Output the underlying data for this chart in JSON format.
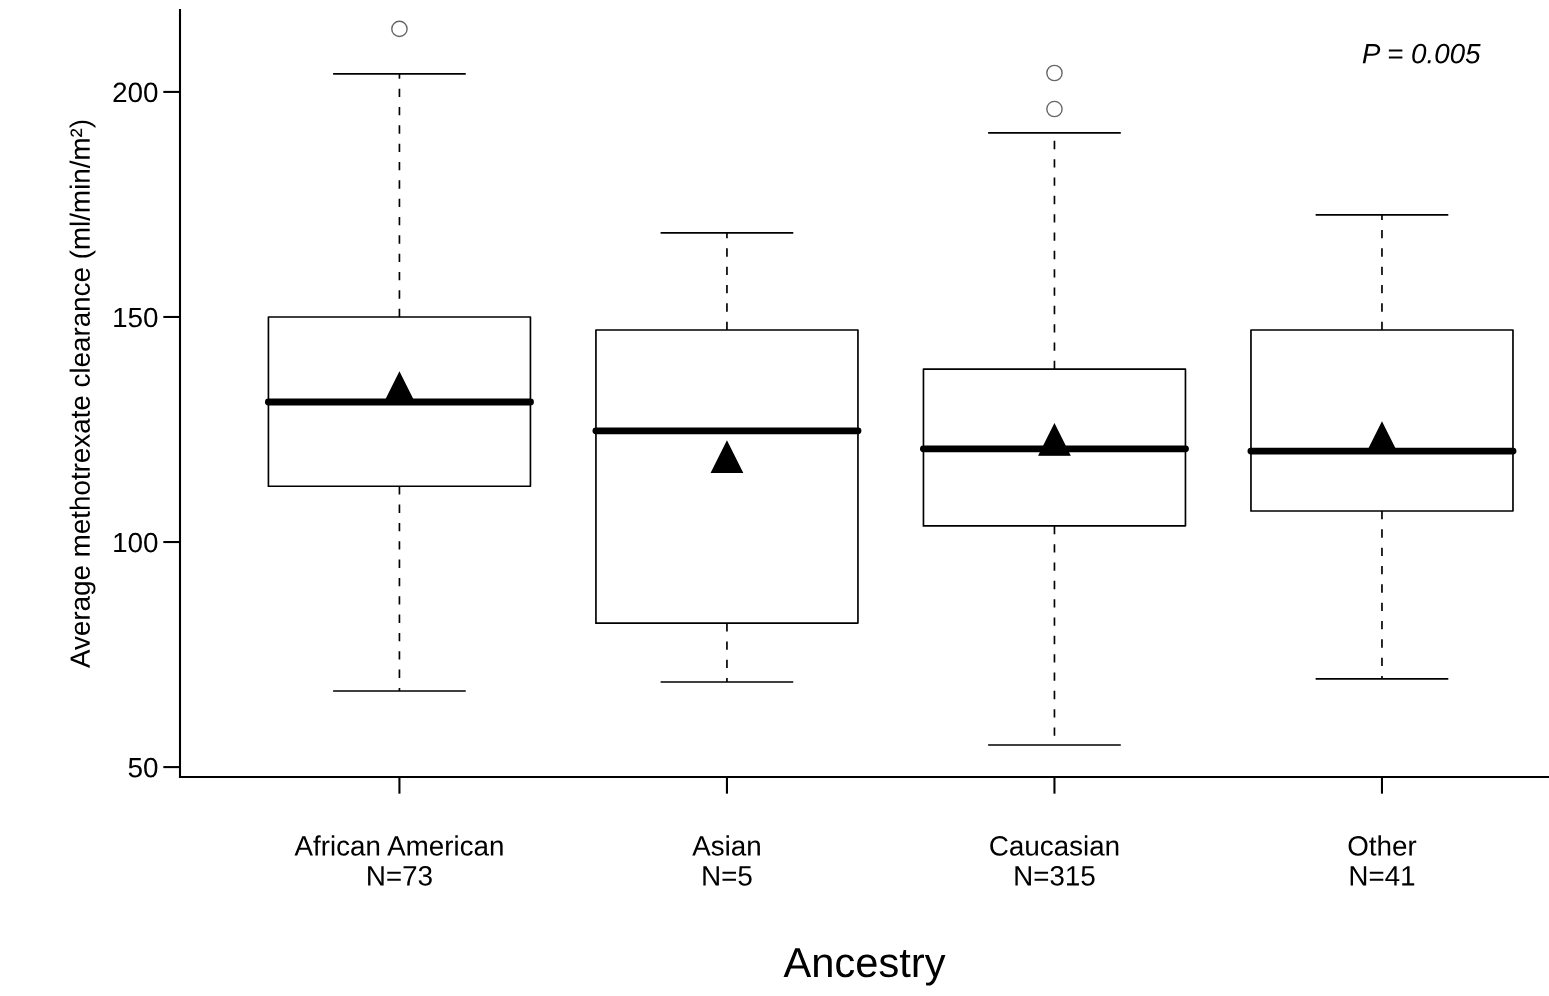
{
  "chart_data": {
    "type": "box",
    "xlabel": "Ancestry",
    "ylabel": "Average methotrexate clearance (ml/min/m²)",
    "categories": [
      "African American\nN=73",
      "Asian\nN=5",
      "Caucasian\nN=315",
      "Other\nN=41"
    ],
    "boxes": [
      {
        "low": 66.9,
        "q1": 112.4,
        "median": 131.1,
        "q3": 150,
        "high": 204,
        "mean": 134.2,
        "outliers": [
          214
        ]
      },
      {
        "low": 68.9,
        "q1": 82,
        "median": 124.7,
        "q3": 147.1,
        "high": 168.7,
        "mean": 118.9
      },
      {
        "low": 54.9,
        "q1": 103.6,
        "median": 120.7,
        "q3": 138.4,
        "high": 190.9,
        "mean": 122.7,
        "outliers": [
          204.2,
          196.2
        ]
      },
      {
        "low": 69.6,
        "q1": 106.9,
        "median": 120.2,
        "q3": 147.1,
        "high": 172.7,
        "mean": 123.1
      }
    ],
    "ylim": [
      47.8,
      218.2
    ],
    "yticks": [
      50,
      100,
      150,
      200
    ],
    "annotations": [
      "P = 0.005"
    ],
    "grid": false,
    "legend": false
  }
}
